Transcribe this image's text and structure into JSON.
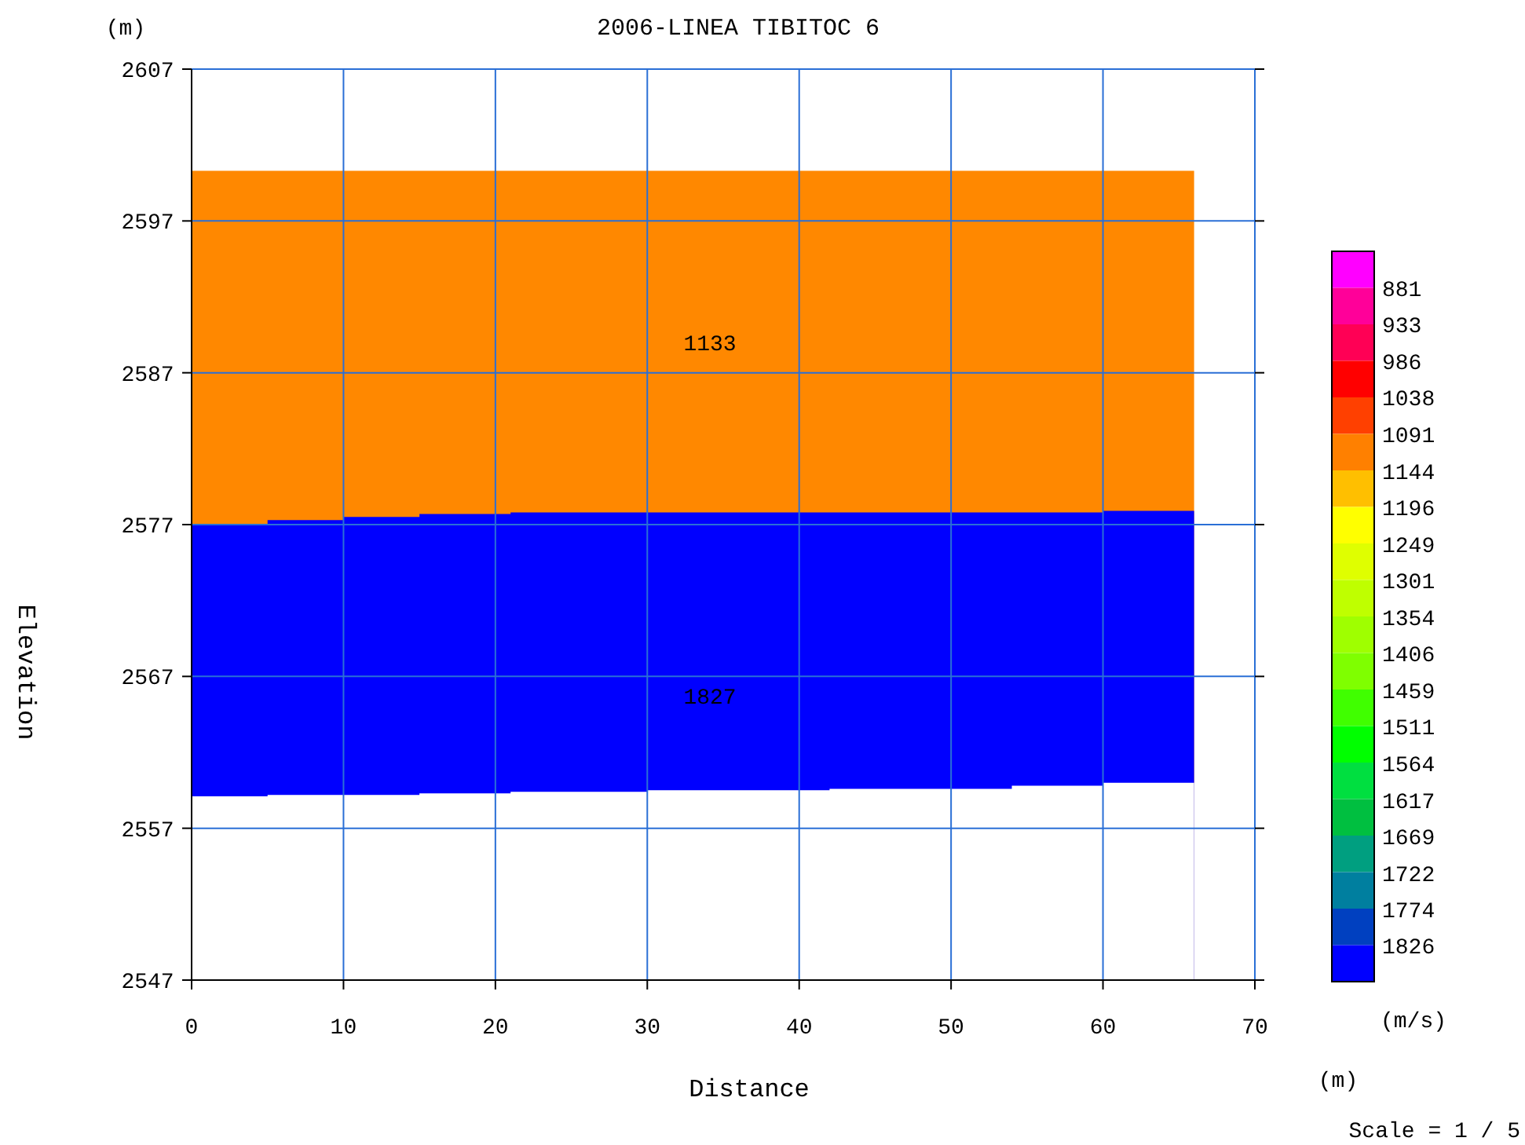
{
  "chart_data": {
    "type": "area",
    "title": "2006-LINEA TIBITOC 6",
    "xlabel": "Distance",
    "ylabel": "Elevation",
    "clabel": "(m/s)",
    "x": [
      0,
      5,
      10,
      15,
      21,
      30,
      42,
      54,
      60,
      66
    ],
    "series": [
      {
        "color": "#ff8800",
        "values": [
          2600.3,
          2600.3,
          2600.3,
          2600.3,
          2600.3,
          2600.3,
          2600.3,
          2600.3,
          2600.3,
          2600.3
        ]
      },
      {
        "color": "#0000ff",
        "values": [
          2577.0,
          2577.3,
          2577.5,
          2577.7,
          2577.8,
          2577.8,
          2577.8,
          2577.8,
          2577.9,
          2577.9
        ]
      },
      {
        "color": "#ffffff",
        "values": [
          2559.1,
          2559.2,
          2559.2,
          2559.3,
          2559.4,
          2559.5,
          2559.6,
          2559.8,
          2560.0,
          2560.1
        ]
      }
    ],
    "annotations": [
      "(m)",
      "(m)",
      "Scale = 1 / 5",
      "1133",
      "1827"
    ],
    "xlim": [
      0,
      70
    ],
    "xticks": [
      0,
      10,
      20,
      30,
      40,
      50,
      60,
      70
    ],
    "ylim": [
      2547,
      2607
    ],
    "yticks": [
      2547,
      2557,
      2567,
      2577,
      2587,
      2597,
      2607
    ],
    "clim": [
      828,
      1878
    ],
    "cticks": [
      881,
      933,
      986,
      1038,
      1091,
      1144,
      1196,
      1249,
      1301,
      1354,
      1406,
      1459,
      1511,
      1564,
      1617,
      1669,
      1722,
      1774,
      1826
    ],
    "grid": true
  }
}
